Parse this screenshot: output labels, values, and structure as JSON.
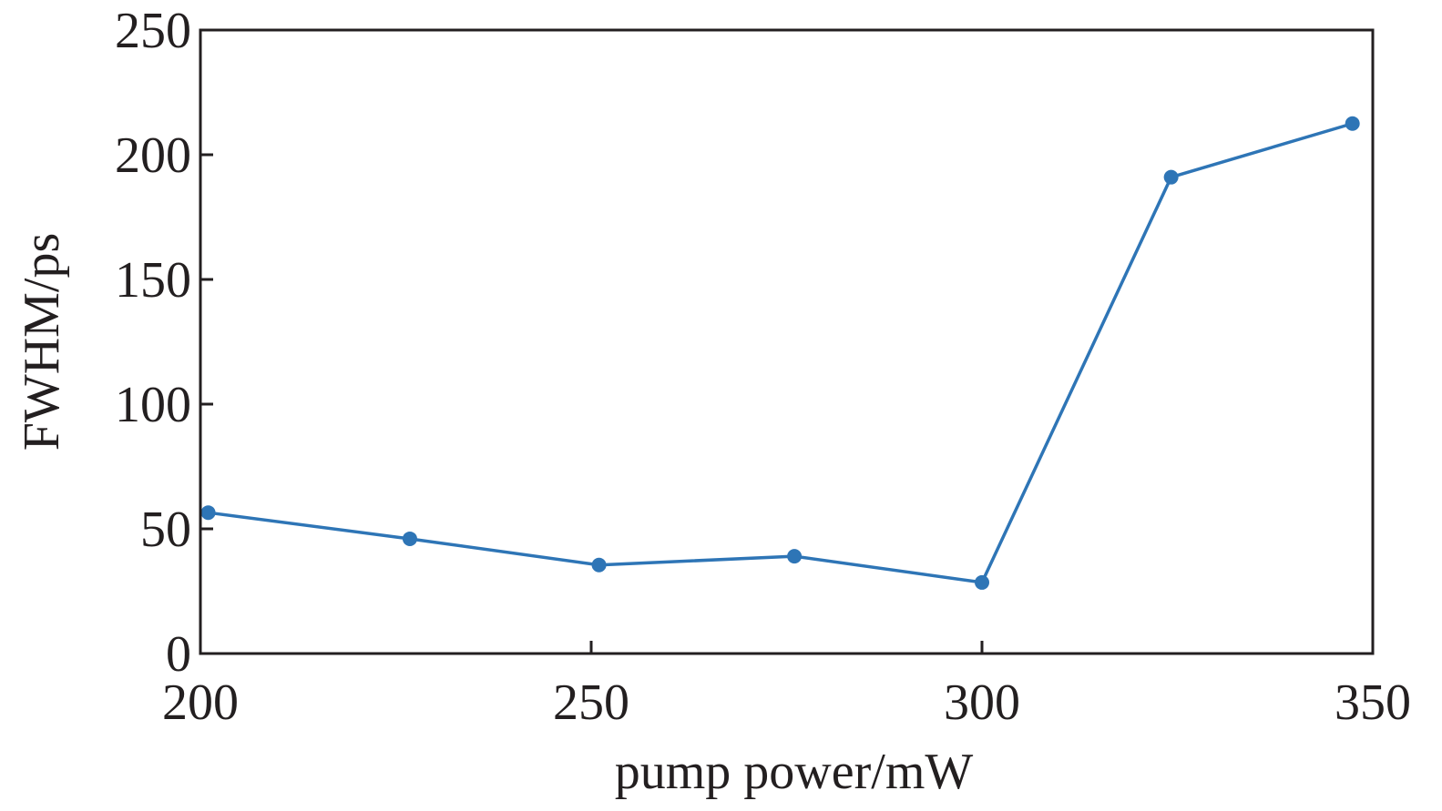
{
  "chart_data": {
    "type": "line",
    "title": "",
    "xlabel": "pump power/mW",
    "ylabel": "FWHM/ps",
    "xlim": [
      200,
      350
    ],
    "ylim": [
      0,
      250
    ],
    "xticks": [
      200,
      250,
      300,
      350
    ],
    "yticks": [
      0,
      50,
      100,
      150,
      200,
      250
    ],
    "grid": false,
    "series": [
      {
        "x": [
          201,
          226.8,
          251,
          276,
          300,
          324.2,
          347.4
        ],
        "y": [
          56.5,
          46,
          35.5,
          39,
          28.5,
          191,
          212.5
        ]
      }
    ],
    "colors": {
      "line": "#2e75b6",
      "axes": "#231f20"
    }
  }
}
